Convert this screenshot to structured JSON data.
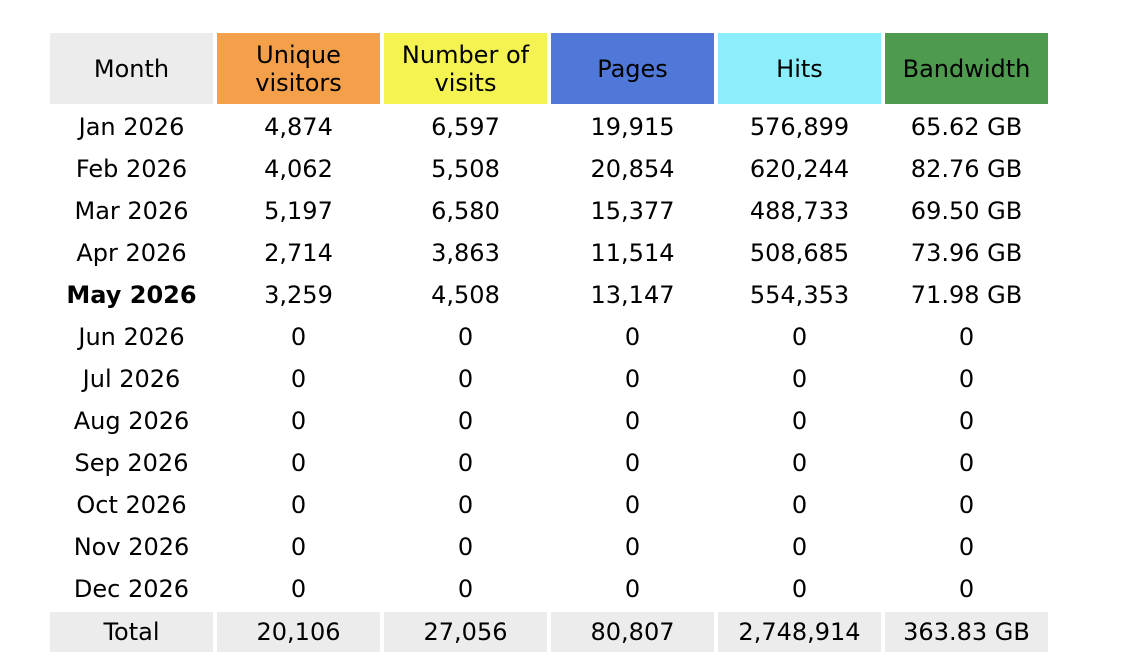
{
  "table": {
    "header": [
      {
        "text": "Month",
        "color": "#ececec"
      },
      {
        "text": "Unique visitors",
        "color": "#f4a04b"
      },
      {
        "text": "Number of visits",
        "color": "#f4f352"
      },
      {
        "text": "Pages",
        "color": "#5078d9"
      },
      {
        "text": "Hits",
        "color": "#8ceefa"
      },
      {
        "text": "Bandwidth",
        "color": "#4e9a4f"
      }
    ],
    "rows": [
      [
        "Jan 2026",
        "4,874",
        "6,597",
        "19,915",
        "576,899",
        "65.62 GB"
      ],
      [
        "Feb 2026",
        "4,062",
        "5,508",
        "20,854",
        "620,244",
        "82.76 GB"
      ],
      [
        "Mar 2026",
        "5,197",
        "6,580",
        "15,377",
        "488,733",
        "69.50 GB"
      ],
      [
        "Apr 2026",
        "2,714",
        "3,863",
        "11,514",
        "508,685",
        "73.96 GB"
      ],
      [
        "May 2026",
        "3,259",
        "4,508",
        "13,147",
        "554,353",
        "71.98 GB"
      ],
      [
        "Jun 2026",
        "0",
        "0",
        "0",
        "0",
        "0"
      ],
      [
        "Jul 2026",
        "0",
        "0",
        "0",
        "0",
        "0"
      ],
      [
        "Aug 2026",
        "0",
        "0",
        "0",
        "0",
        "0"
      ],
      [
        "Sep 2026",
        "0",
        "0",
        "0",
        "0",
        "0"
      ],
      [
        "Oct 2026",
        "0",
        "0",
        "0",
        "0",
        "0"
      ],
      [
        "Nov 2026",
        "0",
        "0",
        "0",
        "0",
        "0"
      ],
      [
        "Dec 2026",
        "0",
        "0",
        "0",
        "0",
        "0"
      ]
    ],
    "total": [
      "Total",
      "20,106",
      "27,056",
      "80,807",
      "2,748,914",
      "363.83 GB"
    ]
  }
}
